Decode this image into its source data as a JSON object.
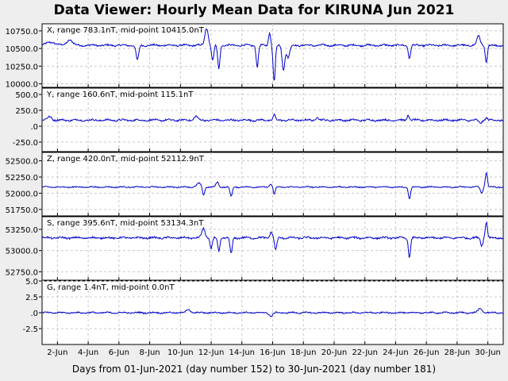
{
  "title": "Data Viewer:  Hourly Mean Data for KIRUNA Jun 2021",
  "xlabel": "Days from 01-Jun-2021 (day number 152) to 30-Jun-2021 (day number 181)",
  "colors": {
    "trace": "#0000cc",
    "grid": "#c8c8c8",
    "plot_bg": "#ffffff",
    "page_bg": "#eeeeee"
  },
  "chart_data": [
    {
      "type": "line",
      "panel": "X",
      "label": "X, range 783.1nT, mid-point 10415.0nT",
      "x_ticks": [
        "2-Jun",
        "4-Jun",
        "6-Jun",
        "8-Jun",
        "10-Jun",
        "12-Jun",
        "14-Jun",
        "16-Jun",
        "18-Jun",
        "20-Jun",
        "22-Jun",
        "24-Jun",
        "26-Jun",
        "28-Jun",
        "30-Jun"
      ],
      "y_ticks": [
        "10750.0",
        "10500.0",
        "10250.0",
        "10000.0"
      ],
      "ylim": [
        9950,
        10850
      ],
      "grid": true,
      "baseline": 10545,
      "noise": 14,
      "events": [
        {
          "day": 1.6,
          "value": 10590,
          "width": 0.4
        },
        {
          "day": 2.8,
          "value": 10625,
          "width": 0.25
        },
        {
          "day": 7.2,
          "value": 10330,
          "width": 0.12
        },
        {
          "day": 11.7,
          "value": 10790,
          "width": 0.15
        },
        {
          "day": 12.1,
          "value": 10330,
          "width": 0.1
        },
        {
          "day": 12.5,
          "value": 10210,
          "width": 0.1
        },
        {
          "day": 15.0,
          "value": 10240,
          "width": 0.1
        },
        {
          "day": 15.8,
          "value": 10720,
          "width": 0.1
        },
        {
          "day": 16.1,
          "value": 10030,
          "width": 0.1
        },
        {
          "day": 16.7,
          "value": 10200,
          "width": 0.12
        },
        {
          "day": 17.0,
          "value": 10370,
          "width": 0.15
        },
        {
          "day": 24.9,
          "value": 10360,
          "width": 0.1
        },
        {
          "day": 29.4,
          "value": 10680,
          "width": 0.15
        },
        {
          "day": 29.9,
          "value": 10300,
          "width": 0.1
        }
      ]
    },
    {
      "type": "line",
      "panel": "Y",
      "label": "Y, range 160.6nT, mid-point 115.1nT",
      "x_ticks": [
        "2-Jun",
        "4-Jun",
        "6-Jun",
        "8-Jun",
        "10-Jun",
        "12-Jun",
        "14-Jun",
        "16-Jun",
        "18-Jun",
        "20-Jun",
        "22-Jun",
        "24-Jun",
        "26-Jun",
        "28-Jun",
        "30-Jun"
      ],
      "y_ticks": [
        "500.0",
        "250.0",
        ".0",
        "-250.0"
      ],
      "ylim": [
        -400,
        600
      ],
      "grid": true,
      "baseline": 95,
      "noise": 16,
      "events": [
        {
          "day": 1.5,
          "value": 150,
          "width": 0.2
        },
        {
          "day": 11.0,
          "value": 160,
          "width": 0.15
        },
        {
          "day": 16.1,
          "value": 180,
          "width": 0.1
        },
        {
          "day": 18.9,
          "value": 155,
          "width": 0.1
        },
        {
          "day": 24.8,
          "value": 175,
          "width": 0.1
        },
        {
          "day": 29.5,
          "value": 50,
          "width": 0.15
        },
        {
          "day": 29.9,
          "value": 135,
          "width": 0.1
        }
      ]
    },
    {
      "type": "line",
      "panel": "Z",
      "label": "Z, range 420.0nT, mid-point 52112.9nT",
      "x_ticks": [
        "2-Jun",
        "4-Jun",
        "6-Jun",
        "8-Jun",
        "10-Jun",
        "12-Jun",
        "14-Jun",
        "16-Jun",
        "18-Jun",
        "20-Jun",
        "22-Jun",
        "24-Jun",
        "26-Jun",
        "28-Jun",
        "30-Jun"
      ],
      "y_ticks": [
        "52500.0",
        "52250.0",
        "52000.0",
        "51750.0"
      ],
      "ylim": [
        51650,
        52630
      ],
      "grid": true,
      "baseline": 52095,
      "noise": 10,
      "events": [
        {
          "day": 11.2,
          "value": 52150,
          "width": 0.2
        },
        {
          "day": 11.5,
          "value": 51970,
          "width": 0.1
        },
        {
          "day": 12.4,
          "value": 52170,
          "width": 0.12
        },
        {
          "day": 13.3,
          "value": 51950,
          "width": 0.1
        },
        {
          "day": 15.9,
          "value": 52140,
          "width": 0.15
        },
        {
          "day": 16.1,
          "value": 51980,
          "width": 0.1
        },
        {
          "day": 24.9,
          "value": 51920,
          "width": 0.1
        },
        {
          "day": 29.6,
          "value": 52000,
          "width": 0.1
        },
        {
          "day": 29.9,
          "value": 52320,
          "width": 0.1
        }
      ]
    },
    {
      "type": "line",
      "panel": "S",
      "label": "S, range 395.6nT, mid-point 53134.3nT",
      "x_ticks": [
        "2-Jun",
        "4-Jun",
        "6-Jun",
        "8-Jun",
        "10-Jun",
        "12-Jun",
        "14-Jun",
        "16-Jun",
        "18-Jun",
        "20-Jun",
        "22-Jun",
        "24-Jun",
        "26-Jun",
        "28-Jun",
        "30-Jun"
      ],
      "y_ticks": [
        "53250.0",
        "53000.0",
        "52750.0"
      ],
      "ylim": [
        52650,
        53400
      ],
      "grid": true,
      "baseline": 53150,
      "noise": 12,
      "events": [
        {
          "day": 11.5,
          "value": 53260,
          "width": 0.15
        },
        {
          "day": 12.0,
          "value": 53020,
          "width": 0.1
        },
        {
          "day": 12.5,
          "value": 52990,
          "width": 0.1
        },
        {
          "day": 13.3,
          "value": 52960,
          "width": 0.1
        },
        {
          "day": 15.9,
          "value": 53220,
          "width": 0.12
        },
        {
          "day": 16.2,
          "value": 53000,
          "width": 0.1
        },
        {
          "day": 24.9,
          "value": 52920,
          "width": 0.1
        },
        {
          "day": 29.6,
          "value": 53060,
          "width": 0.1
        },
        {
          "day": 29.9,
          "value": 53340,
          "width": 0.1
        }
      ]
    },
    {
      "type": "line",
      "panel": "G",
      "label": "G, range 1.4nT, mid-point 0.0nT",
      "x_ticks": [
        "2-Jun",
        "4-Jun",
        "6-Jun",
        "8-Jun",
        "10-Jun",
        "12-Jun",
        "14-Jun",
        "16-Jun",
        "18-Jun",
        "20-Jun",
        "22-Jun",
        "24-Jun",
        "26-Jun",
        "28-Jun",
        "30-Jun"
      ],
      "y_ticks": [
        "5.0",
        "2.5",
        ".0",
        "-2.5"
      ],
      "ylim": [
        -5,
        5
      ],
      "grid": true,
      "baseline": 0.0,
      "noise": 0.12,
      "events": [
        {
          "day": 10.5,
          "value": 0.5,
          "width": 0.2
        },
        {
          "day": 15.9,
          "value": -0.55,
          "width": 0.15
        },
        {
          "day": 29.5,
          "value": 0.6,
          "width": 0.2
        }
      ]
    }
  ]
}
